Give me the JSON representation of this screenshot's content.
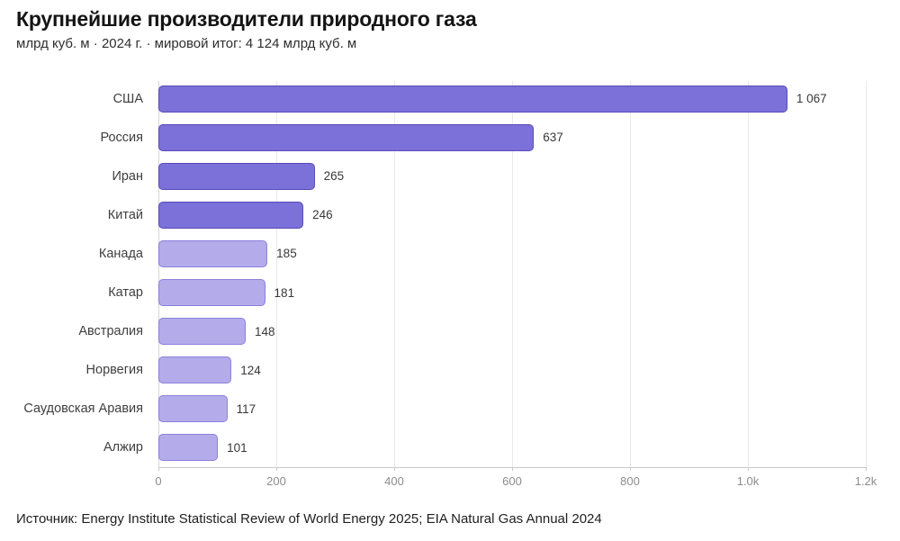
{
  "header": {
    "title": "Крупнейшие производители природного газа",
    "subtitle": "млрд куб. м · 2024 г. · мировой итог: 4 124 млрд куб. м"
  },
  "footer": {
    "source": "Источник: Energy Institute Statistical Review of World Energy 2025; EIA Natural Gas Annual 2024"
  },
  "chart_data": {
    "type": "bar",
    "orientation": "horizontal",
    "title": "Крупнейшие производители природного газа",
    "subtitle": "млрд куб. м · 2024 г. · мировой итог: 4 124 млрд куб. м",
    "unit": "млрд куб. м",
    "year": "2024",
    "categories": [
      "США",
      "Россия",
      "Иран",
      "Китай",
      "Канада",
      "Катар",
      "Австралия",
      "Норвегия",
      "Саудовская Аравия",
      "Алжир"
    ],
    "values": [
      1067,
      637,
      265,
      246,
      185,
      181,
      148,
      124,
      117,
      101
    ],
    "value_labels": [
      "1 067",
      "637",
      "265",
      "246",
      "185",
      "181",
      "148",
      "124",
      "117",
      "101"
    ],
    "bar_tiers": [
      "dark",
      "dark",
      "dark",
      "dark",
      "light",
      "light",
      "light",
      "light",
      "light",
      "light"
    ],
    "xlim": [
      0,
      1200
    ],
    "x_ticks": [
      {
        "value": 0,
        "label": "0"
      },
      {
        "value": 200,
        "label": "200"
      },
      {
        "value": 400,
        "label": "400"
      },
      {
        "value": 600,
        "label": "600"
      },
      {
        "value": 800,
        "label": "800"
      },
      {
        "value": 1000,
        "label": "1.0k"
      },
      {
        "value": 1200,
        "label": "1.2k"
      }
    ],
    "grid": true,
    "legend": "none",
    "colors": {
      "bar_dark_fill": "#7C70D9",
      "bar_dark_border": "#574BB8",
      "bar_light_fill": "#B4ACEA",
      "bar_light_border": "#8A80DC",
      "gridline": "#E9E9E9",
      "zero_line": "#D6D6D6",
      "axis_line": "#C9C9C9",
      "tick_text": "#8D8D8D",
      "label_text": "#3F3F3F",
      "value_text": "#383838"
    }
  }
}
